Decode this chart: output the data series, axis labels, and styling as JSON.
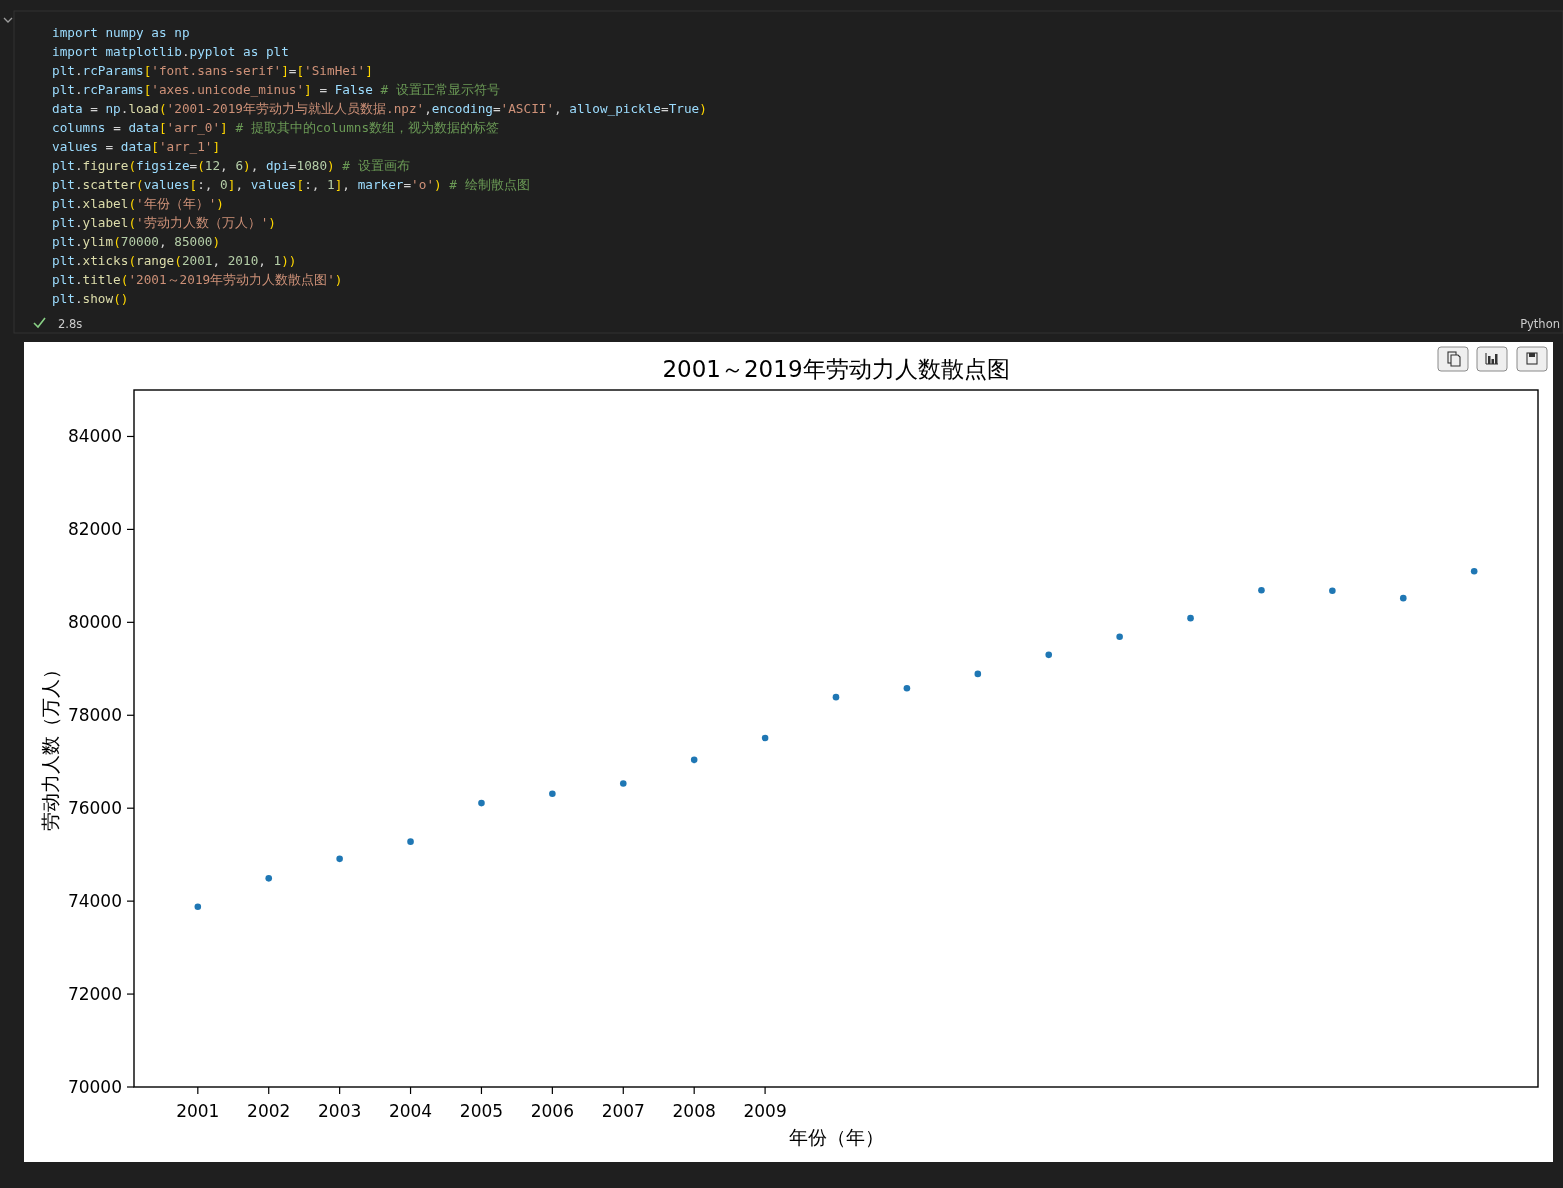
{
  "chart_data": {
    "type": "scatter",
    "title": "2001～2019年劳动力人数散点图",
    "xlabel": "年份（年）",
    "ylabel": "劳动力人数（万人）",
    "x": [
      2001,
      2002,
      2003,
      2004,
      2005,
      2006,
      2007,
      2008,
      2009,
      2010,
      2011,
      2012,
      2013,
      2014,
      2015,
      2016,
      2017,
      2018,
      2019
    ],
    "values": [
      73880,
      74490,
      74910,
      75280,
      76110,
      76310,
      76530,
      77040,
      77510,
      78390,
      78580,
      78890,
      79300,
      79690,
      80090,
      80690,
      80680,
      80520,
      81100
    ],
    "color": "#1f77b4",
    "marker": "circle",
    "xlim": [
      2000.1,
      2019.9
    ],
    "xticks": [
      2001,
      2002,
      2003,
      2004,
      2005,
      2006,
      2007,
      2008,
      2009
    ],
    "ylim": [
      70000,
      85000
    ],
    "yticks": [
      70000,
      72000,
      74000,
      76000,
      78000,
      80000,
      82000,
      84000
    ],
    "annotations": [
      "import numpy as np",
      "import matplotlib.pyplot as plt",
      "plt.rcParams['font.sans-serif']=['SimHei']",
      "plt.rcParams['axes.unicode_minus'] = False # 设置正常显示符号",
      "data = np.load('2001-2019年劳动力与就业人员数据.npz',encoding='ASCII', allow_pickle=True)",
      "columns = data['arr_0'] # 提取其中的columns数组，视为数据的标签",
      "values = data['arr_1']",
      "plt.figure(figsize=(12, 6), dpi=1080) # 设置画布",
      "plt.scatter(values[:, 0], values[:, 1], marker='o') # 绘制散点图",
      "plt.xlabel('年份（年）')",
      "plt.ylabel('劳动力人数（万人）')",
      "plt.ylim(70000, 85000)",
      "plt.xticks(range(2001, 2010, 1))",
      "plt.title('2001～2019年劳动力人数散点图')",
      "plt.show()",
      "2.8s",
      "Python"
    ]
  }
}
